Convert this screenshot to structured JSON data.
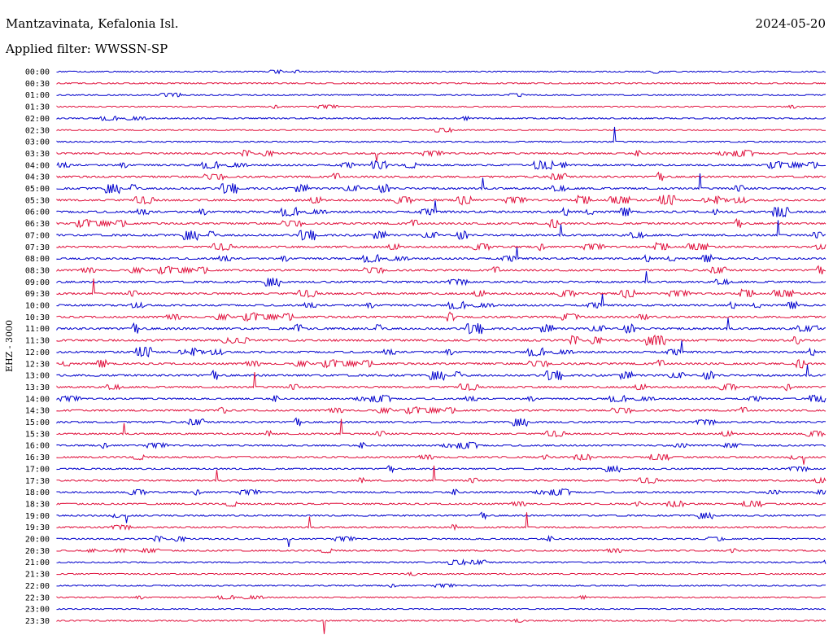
{
  "header": {
    "station": "Mantzavinata, Kefalonia Isl.",
    "date": "2024-05-20",
    "filter": "Applied filter: WWSSN-SP"
  },
  "chart_data": {
    "type": "line",
    "title": "Mantzavinata, Kefalonia Isl.",
    "ylabel": "EHZ - 3000",
    "colors": [
      "#0000cc",
      "#e0103c"
    ],
    "row_labels": [
      "00:00",
      "00:30",
      "01:00",
      "01:30",
      "02:00",
      "02:30",
      "03:00",
      "03:30",
      "04:00",
      "04:30",
      "05:00",
      "05:30",
      "06:00",
      "06:30",
      "07:00",
      "07:30",
      "08:00",
      "08:30",
      "09:00",
      "09:30",
      "10:00",
      "10:30",
      "11:00",
      "11:30",
      "12:00",
      "12:30",
      "13:00",
      "13:30",
      "14:00",
      "14:30",
      "15:00",
      "15:30",
      "16:00",
      "16:30",
      "17:00",
      "17:30",
      "18:00",
      "18:30",
      "19:00",
      "19:30",
      "20:00",
      "20:30",
      "21:00",
      "21:30",
      "22:00",
      "22:30",
      "23:00",
      "23:30"
    ],
    "activity": [
      0.1,
      0.08,
      0.08,
      0.1,
      0.15,
      0.1,
      0.2,
      0.4,
      0.55,
      0.6,
      0.75,
      0.7,
      0.8,
      0.65,
      0.75,
      0.6,
      0.65,
      0.6,
      0.65,
      0.65,
      0.6,
      0.7,
      0.8,
      0.7,
      0.7,
      0.65,
      0.7,
      0.55,
      0.45,
      0.5,
      0.55,
      0.45,
      0.4,
      0.4,
      0.35,
      0.4,
      0.4,
      0.4,
      0.35,
      0.35,
      0.3,
      0.25,
      0.2,
      0.15,
      0.08,
      0.08,
      0.06,
      0.05
    ]
  }
}
